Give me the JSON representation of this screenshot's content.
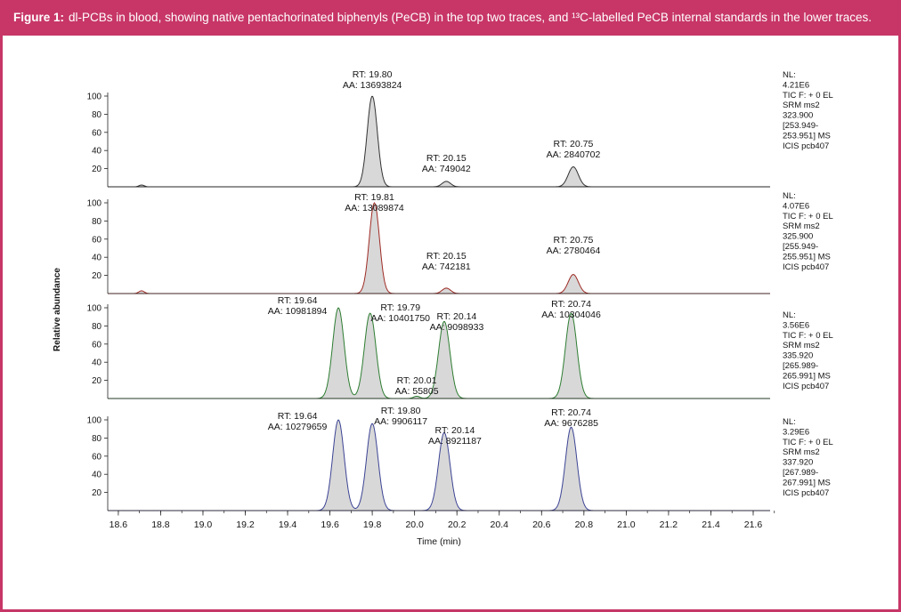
{
  "figure": {
    "caption_prefix": "Figure 1:",
    "caption_text": "dl-PCBs in blood, showing native pentachorinated biphenyls (PeCB) in the top two traces, and ¹³C-labelled PeCB internal standards in the lower traces.",
    "header_bg": "#c73667",
    "border_color": "#c73667"
  },
  "chart_data": {
    "type": "line",
    "title": "",
    "xlabel": "Time (min)",
    "ylabel": "Relative abundance",
    "x_range": [
      18.55,
      21.68
    ],
    "ylim": [
      0,
      100
    ],
    "grid": false,
    "x_ticks": [
      18.6,
      18.8,
      19.0,
      19.2,
      19.4,
      19.6,
      19.8,
      20.0,
      20.2,
      20.4,
      20.6,
      20.8,
      21.0,
      21.2,
      21.4,
      21.6
    ],
    "y_ticks": [
      20,
      40,
      60,
      80,
      100
    ],
    "panels": [
      {
        "name": "native-PeCB-trace-1",
        "color": "#333333",
        "fill": "#d8d8d8",
        "nl_lines": [
          "NL:",
          "4.21E6",
          "TIC F: + 0 EL",
          "SRM ms2",
          "323.900",
          "[253.949-",
          "253.951] MS",
          "ICIS pcb407"
        ],
        "peaks": [
          {
            "x": 19.8,
            "rt": "19.80",
            "aa": "13693824",
            "height": 100,
            "sigma": 0.024,
            "label_dx": 0,
            "label_dy": 132
          },
          {
            "x": 20.15,
            "rt": "20.15",
            "aa": "749042",
            "height": 6,
            "sigma": 0.02,
            "label_dx": 0,
            "label_dy": 38
          },
          {
            "x": 20.75,
            "rt": "20.75",
            "aa": "2840702",
            "height": 22,
            "sigma": 0.024,
            "label_dx": 0,
            "label_dy": 54
          }
        ],
        "noise": [
          {
            "x": 18.71,
            "height": 2,
            "sigma": 0.012
          }
        ]
      },
      {
        "name": "native-PeCB-trace-2",
        "color": "#9e2b25",
        "fill": "#d8d8d8",
        "nl_lines": [
          "NL:",
          "4.07E6",
          "TIC F: + 0 EL",
          "SRM ms2",
          "325.900",
          "[255.949-",
          "255.951] MS",
          "ICIS pcb407"
        ],
        "peaks": [
          {
            "x": 19.81,
            "rt": "19.81",
            "aa": "13089874",
            "height": 100,
            "sigma": 0.024,
            "label_dx": 0,
            "label_dy": 114
          },
          {
            "x": 20.15,
            "rt": "20.15",
            "aa": "742181",
            "height": 6,
            "sigma": 0.02,
            "label_dx": 0,
            "label_dy": 48
          },
          {
            "x": 20.75,
            "rt": "20.75",
            "aa": "2780464",
            "height": 21,
            "sigma": 0.024,
            "label_dx": 0,
            "label_dy": 66
          }
        ],
        "noise": [
          {
            "x": 18.71,
            "height": 3,
            "sigma": 0.013
          }
        ]
      },
      {
        "name": "13C-PeCB-trace-3",
        "color": "#2e7d32",
        "fill": "#d8d8d8",
        "nl_lines": [
          "NL:",
          "3.56E6",
          "TIC F: + 0 EL",
          "SRM ms2",
          "335.920",
          "[265.989-",
          "265.991] MS",
          "ICIS pcb407"
        ],
        "peaks": [
          {
            "x": 19.64,
            "rt": "19.64",
            "aa": "10981894",
            "height": 100,
            "sigma": 0.027,
            "label_dx": -46,
            "label_dy": 116
          },
          {
            "x": 19.79,
            "rt": "19.79",
            "aa": "10401750",
            "height": 94,
            "sigma": 0.027,
            "label_dx": 34,
            "label_dy": 108
          },
          {
            "x": 20.01,
            "rt": "20.01",
            "aa": "55805",
            "height": 2.5,
            "sigma": 0.015,
            "label_dx": 0,
            "label_dy": 26
          },
          {
            "x": 20.14,
            "rt": "20.14",
            "aa": "9098933",
            "height": 85,
            "sigma": 0.027,
            "label_dx": 14,
            "label_dy": 98
          },
          {
            "x": 20.74,
            "rt": "20.74",
            "aa": "10304046",
            "height": 94,
            "sigma": 0.027,
            "label_dx": 0,
            "label_dy": 112
          }
        ],
        "noise": []
      },
      {
        "name": "13C-PeCB-trace-4",
        "color": "#3d4494",
        "fill": "#d8d8d8",
        "nl_lines": [
          "NL:",
          "3.29E6",
          "TIC F: + 0 EL",
          "SRM ms2",
          "337.920",
          "[267.989-",
          "267.991] MS",
          "ICIS pcb407"
        ],
        "peaks": [
          {
            "x": 19.64,
            "rt": "19.64",
            "aa": "10279659",
            "height": 100,
            "sigma": 0.027,
            "label_dx": -46,
            "label_dy": 112
          },
          {
            "x": 19.8,
            "rt": "19.80",
            "aa": "9906117",
            "height": 96,
            "sigma": 0.027,
            "label_dx": 32,
            "label_dy": 118
          },
          {
            "x": 20.14,
            "rt": "20.14",
            "aa": "8921187",
            "height": 86,
            "sigma": 0.027,
            "label_dx": 12,
            "label_dy": 96
          },
          {
            "x": 20.74,
            "rt": "20.74",
            "aa": "9676285",
            "height": 92,
            "sigma": 0.027,
            "label_dx": 0,
            "label_dy": 116
          }
        ],
        "noise": []
      }
    ]
  }
}
